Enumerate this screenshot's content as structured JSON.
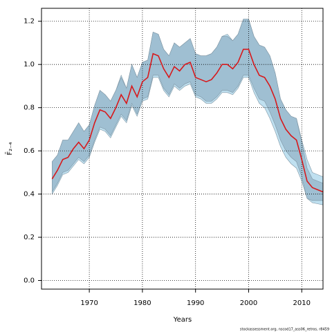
{
  "chart_data": {
    "type": "line",
    "x_label": "Years",
    "y_label": "F̄₂₋₄",
    "footnote": "stockassessment.org, nscod17_ass06_retros, r8459",
    "xlim": [
      1961,
      2014
    ],
    "xticks": [
      1970,
      1980,
      1990,
      2000,
      2010
    ],
    "ylim": [
      -0.04,
      1.26
    ],
    "yticks": [
      {
        "value": 0,
        "label": "0.0"
      },
      {
        "value": 0.2,
        "label": "0.2"
      },
      {
        "value": 0.4,
        "label": "0.4"
      },
      {
        "value": 0.6,
        "label": "0.6"
      },
      {
        "value": 0.8,
        "label": "0.8"
      },
      {
        "value": 1,
        "label": "1.0"
      },
      {
        "value": 1.2,
        "label": "1.2"
      }
    ],
    "grid": true,
    "x": [
      1963,
      1964,
      1965,
      1966,
      1967,
      1968,
      1969,
      1970,
      1971,
      1972,
      1973,
      1974,
      1975,
      1976,
      1977,
      1978,
      1979,
      1980,
      1981,
      1982,
      1983,
      1984,
      1985,
      1986,
      1987,
      1988,
      1989,
      1990,
      1991,
      1992,
      1993,
      1994,
      1995,
      1996,
      1997,
      1998,
      1999,
      2000,
      2001,
      2002,
      2003,
      2004,
      2005,
      2006,
      2007,
      2008,
      2009,
      2010,
      2011,
      2012,
      2013,
      2014
    ],
    "bands": [
      {
        "color": "#bfe0f0",
        "upper": [
          0.55,
          0.58,
          0.65,
          0.65,
          0.69,
          0.73,
          0.69,
          0.72,
          0.81,
          0.88,
          0.86,
          0.83,
          0.88,
          0.95,
          0.89,
          1.0,
          0.94,
          1.01,
          1.02,
          1.15,
          1.14,
          1.07,
          1.04,
          1.1,
          1.08,
          1.1,
          1.12,
          1.05,
          1.04,
          1.04,
          1.05,
          1.08,
          1.13,
          1.14,
          1.11,
          1.14,
          1.21,
          1.21,
          1.13,
          1.09,
          1.08,
          1.04,
          0.96,
          0.84,
          0.79,
          0.76,
          0.75,
          0.65,
          0.56,
          0.5,
          0.49,
          0.48
        ],
        "lower": [
          0.4,
          0.44,
          0.49,
          0.5,
          0.53,
          0.56,
          0.54,
          0.57,
          0.64,
          0.7,
          0.69,
          0.66,
          0.71,
          0.76,
          0.73,
          0.81,
          0.76,
          0.83,
          0.84,
          0.94,
          0.94,
          0.88,
          0.85,
          0.9,
          0.88,
          0.9,
          0.91,
          0.85,
          0.84,
          0.82,
          0.82,
          0.84,
          0.87,
          0.87,
          0.86,
          0.89,
          0.94,
          0.94,
          0.87,
          0.82,
          0.8,
          0.75,
          0.69,
          0.62,
          0.57,
          0.54,
          0.52,
          0.46,
          0.38,
          0.36,
          0.355,
          0.35
        ]
      },
      {
        "color": "#9fbfd2",
        "upper": [
          0.55,
          0.58,
          0.65,
          0.65,
          0.69,
          0.73,
          0.69,
          0.72,
          0.81,
          0.88,
          0.86,
          0.83,
          0.88,
          0.94,
          0.89,
          1.0,
          0.94,
          1.01,
          1.02,
          1.15,
          1.14,
          1.07,
          1.04,
          1.1,
          1.08,
          1.1,
          1.12,
          1.05,
          1.04,
          1.04,
          1.05,
          1.08,
          1.13,
          1.13,
          1.11,
          1.14,
          1.21,
          1.21,
          1.13,
          1.09,
          1.08,
          1.04,
          0.96,
          0.84,
          0.79,
          0.76,
          0.75,
          0.64,
          0.52,
          0.47,
          0.46,
          0.45
        ],
        "lower": [
          0.41,
          0.45,
          0.5,
          0.51,
          0.54,
          0.57,
          0.55,
          0.58,
          0.65,
          0.71,
          0.7,
          0.67,
          0.72,
          0.77,
          0.74,
          0.82,
          0.77,
          0.84,
          0.85,
          0.95,
          0.95,
          0.89,
          0.86,
          0.91,
          0.89,
          0.91,
          0.92,
          0.86,
          0.85,
          0.83,
          0.83,
          0.85,
          0.88,
          0.88,
          0.87,
          0.9,
          0.95,
          0.95,
          0.89,
          0.84,
          0.83,
          0.78,
          0.72,
          0.65,
          0.6,
          0.57,
          0.55,
          0.48,
          0.38,
          0.37,
          0.37,
          0.37
        ]
      }
    ],
    "series": [
      {
        "color": "#d7191c",
        "values": [
          0.47,
          0.51,
          0.56,
          0.57,
          0.61,
          0.64,
          0.61,
          0.65,
          0.73,
          0.79,
          0.78,
          0.75,
          0.8,
          0.86,
          0.82,
          0.9,
          0.85,
          0.92,
          0.94,
          1.05,
          1.04,
          0.98,
          0.94,
          0.99,
          0.97,
          1.0,
          1.01,
          0.94,
          0.93,
          0.92,
          0.93,
          0.96,
          1.0,
          1.0,
          0.98,
          1.01,
          1.07,
          1.07,
          1.0,
          0.95,
          0.94,
          0.9,
          0.84,
          0.75,
          0.7,
          0.67,
          0.65,
          0.56,
          0.46,
          0.43,
          0.42,
          0.41
        ]
      }
    ]
  }
}
